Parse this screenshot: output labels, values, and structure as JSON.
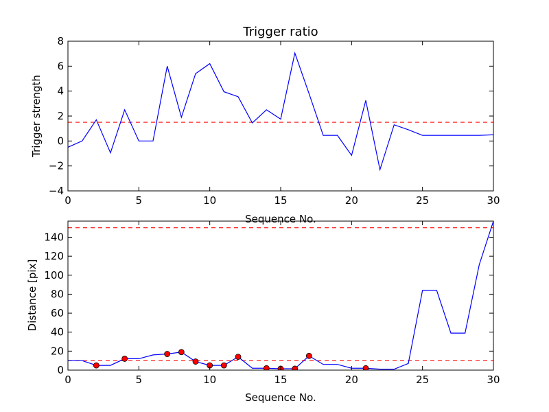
{
  "chart_data": [
    {
      "type": "line",
      "title": "Trigger ratio",
      "xlabel": "Sequence No.",
      "ylabel": "Trigger strength",
      "xlim": [
        0,
        30
      ],
      "ylim": [
        -4,
        8
      ],
      "xticks": [
        0,
        5,
        10,
        15,
        20,
        25,
        30
      ],
      "yticks": [
        -4,
        -2,
        0,
        2,
        4,
        6,
        8
      ],
      "grid": false,
      "series": [
        {
          "color": "#0000ff",
          "x": [
            0,
            1,
            2,
            3,
            4,
            5,
            6,
            7,
            8,
            9,
            10,
            11,
            12,
            13,
            14,
            15,
            16,
            17,
            18,
            19,
            20,
            21,
            22,
            23,
            24,
            25,
            26,
            27,
            28,
            29,
            30
          ],
          "y": [
            -0.5,
            0.0,
            1.7,
            -0.95,
            2.5,
            0.0,
            0.0,
            6.0,
            1.9,
            5.4,
            6.2,
            3.95,
            3.55,
            1.45,
            2.5,
            1.75,
            7.05,
            3.8,
            0.45,
            0.45,
            -1.15,
            3.25,
            -2.3,
            1.3,
            0.9,
            0.45,
            0.45,
            0.45,
            0.45,
            0.45,
            0.5
          ]
        }
      ],
      "threshold": {
        "y": 1.5,
        "color": "#ff0000",
        "style": "dashed"
      }
    },
    {
      "type": "line",
      "title": "",
      "xlabel": "Sequence No.",
      "ylabel": "Distance [pix]",
      "xlim": [
        0,
        30
      ],
      "ylim": [
        0,
        157
      ],
      "xticks": [
        0,
        5,
        10,
        15,
        20,
        25,
        30
      ],
      "yticks": [
        0,
        20,
        40,
        60,
        80,
        100,
        120,
        140
      ],
      "grid": false,
      "series": [
        {
          "color": "#0000ff",
          "x": [
            0,
            1,
            2,
            3,
            4,
            5,
            6,
            7,
            8,
            9,
            10,
            11,
            12,
            13,
            14,
            15,
            16,
            17,
            18,
            19,
            20,
            21,
            22,
            23,
            24,
            25,
            26,
            27,
            28,
            29,
            30
          ],
          "y": [
            10,
            10,
            5,
            5,
            12,
            12,
            16,
            17,
            19,
            9,
            5,
            5,
            14,
            2,
            2,
            1.5,
            1.5,
            15,
            6,
            6,
            2,
            2,
            1,
            1,
            7,
            84,
            84,
            39,
            39,
            111,
            157
          ]
        }
      ],
      "markers": {
        "color": "#ff0000",
        "x": [
          2,
          4,
          7,
          8,
          9,
          10,
          11,
          12,
          14,
          15,
          16,
          17,
          21
        ],
        "y": [
          5,
          12,
          17,
          19,
          9,
          5,
          5,
          14,
          2,
          1.5,
          1.5,
          15,
          2
        ]
      },
      "thresholds": [
        {
          "y": 150,
          "color": "#ff0000",
          "style": "dashed"
        },
        {
          "y": 10,
          "color": "#ff0000",
          "style": "dashed"
        }
      ]
    }
  ]
}
